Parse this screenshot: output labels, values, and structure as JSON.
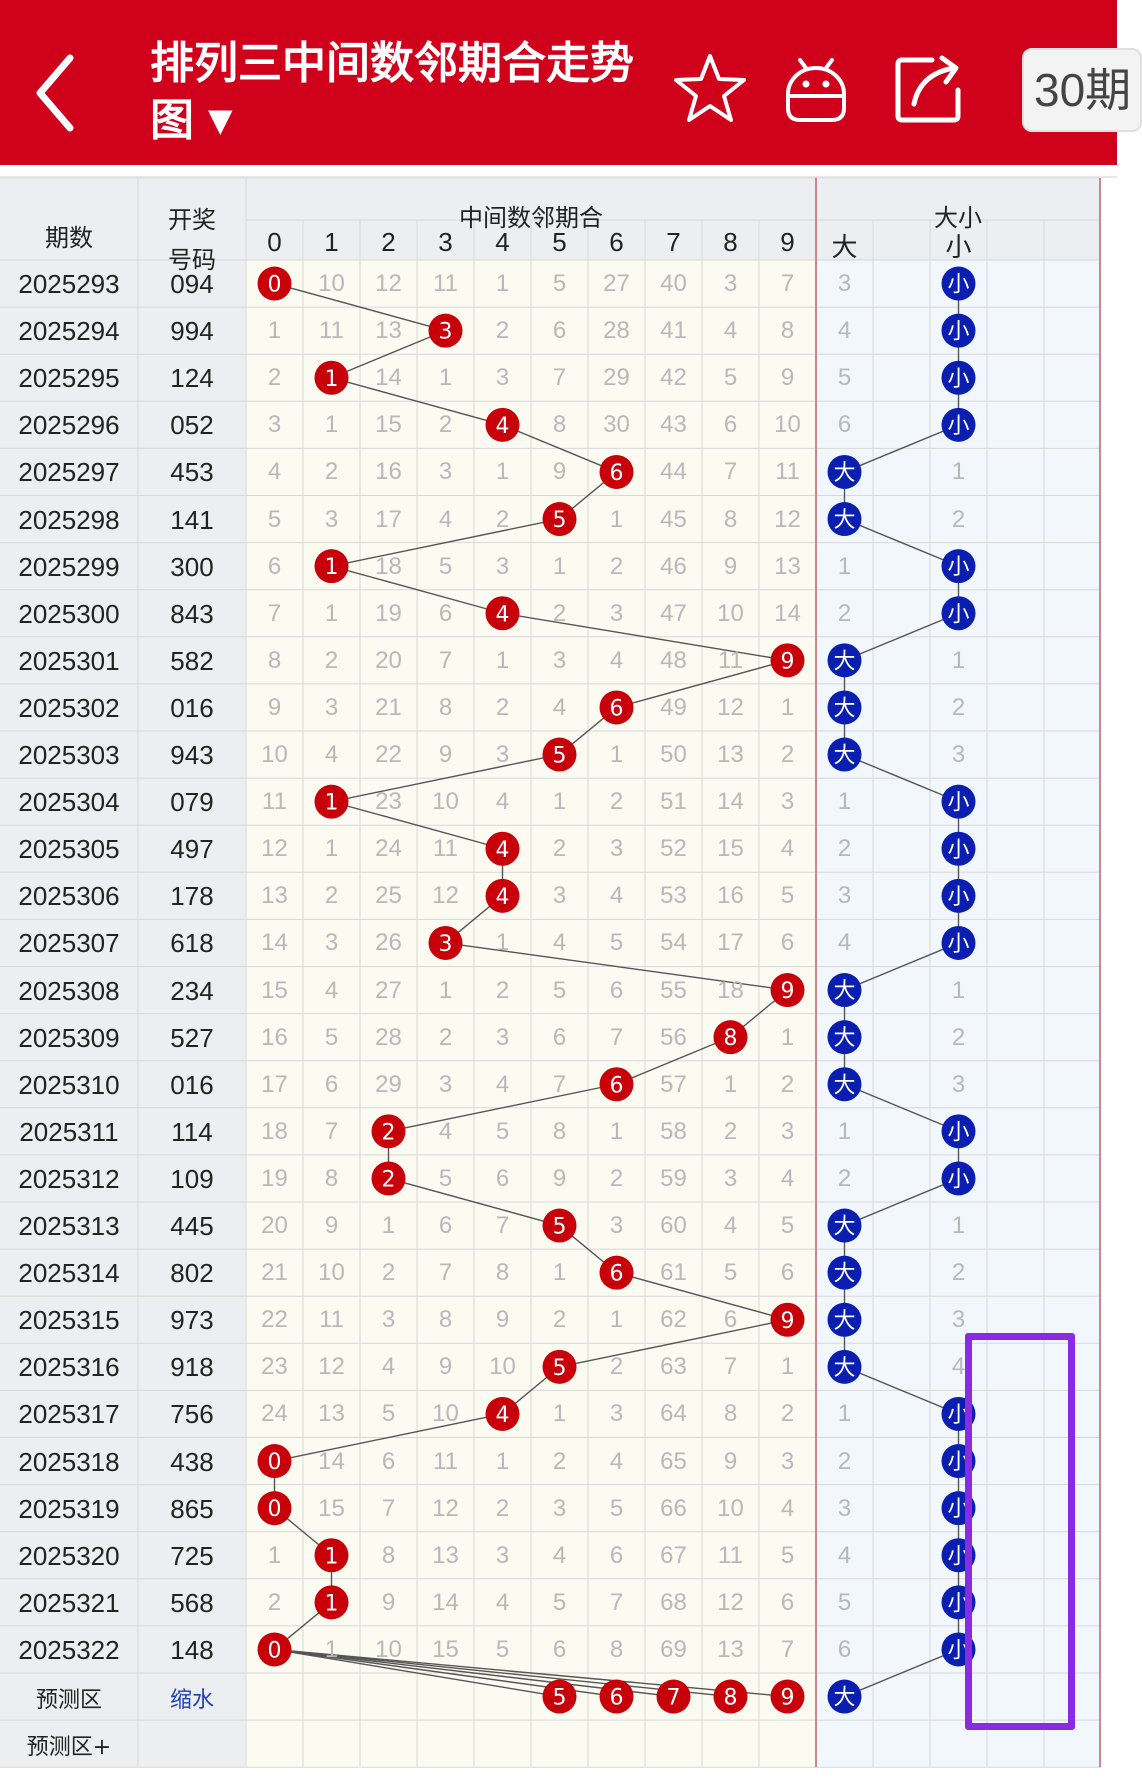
{
  "header": {
    "title": "排列三中间数邻期合走势图",
    "dropdown_arrow": "▼",
    "period_button": "30期",
    "icons": [
      "back-arrow-icon",
      "star-icon",
      "robot-icon",
      "share-icon"
    ],
    "bg_color": "#d0021b"
  },
  "table": {
    "col_period": "期数",
    "col_draw_line1": "开奖",
    "col_draw_line2": "号码",
    "group_middle": "中间数邻期合",
    "group_size": "大小",
    "digits": [
      "0",
      "1",
      "2",
      "3",
      "4",
      "5",
      "6",
      "7",
      "8",
      "9"
    ],
    "size_labels": [
      "大",
      "小"
    ],
    "ball_color_red": "#c8000a",
    "ball_color_blue": "#0a1fb0",
    "rows": [
      {
        "period": "2025293",
        "draw": "094",
        "hit": 0,
        "omit": [
          0,
          10,
          12,
          11,
          1,
          5,
          27,
          40,
          3,
          7
        ],
        "size": "小",
        "big": 3,
        "small": 0
      },
      {
        "period": "2025294",
        "draw": "994",
        "hit": 3,
        "omit": [
          1,
          11,
          13,
          0,
          2,
          6,
          28,
          41,
          4,
          8
        ],
        "size": "小",
        "big": 4,
        "small": 0
      },
      {
        "period": "2025295",
        "draw": "124",
        "hit": 1,
        "omit": [
          2,
          0,
          14,
          1,
          3,
          7,
          29,
          42,
          5,
          9
        ],
        "size": "小",
        "big": 5,
        "small": 0
      },
      {
        "period": "2025296",
        "draw": "052",
        "hit": 4,
        "omit": [
          3,
          1,
          15,
          2,
          0,
          8,
          30,
          43,
          6,
          10
        ],
        "size": "小",
        "big": 6,
        "small": 0
      },
      {
        "period": "2025297",
        "draw": "453",
        "hit": 6,
        "omit": [
          4,
          2,
          16,
          3,
          1,
          9,
          0,
          44,
          7,
          11
        ],
        "size": "大",
        "big": 0,
        "small": 1
      },
      {
        "period": "2025298",
        "draw": "141",
        "hit": 5,
        "omit": [
          5,
          3,
          17,
          4,
          2,
          0,
          1,
          45,
          8,
          12
        ],
        "size": "大",
        "big": 0,
        "small": 2
      },
      {
        "period": "2025299",
        "draw": "300",
        "hit": 1,
        "omit": [
          6,
          0,
          18,
          5,
          3,
          1,
          2,
          46,
          9,
          13
        ],
        "size": "小",
        "big": 1,
        "small": 0
      },
      {
        "period": "2025300",
        "draw": "843",
        "hit": 4,
        "omit": [
          7,
          1,
          19,
          6,
          0,
          2,
          3,
          47,
          10,
          14
        ],
        "size": "小",
        "big": 2,
        "small": 0
      },
      {
        "period": "2025301",
        "draw": "582",
        "hit": 9,
        "omit": [
          8,
          2,
          20,
          7,
          1,
          3,
          4,
          48,
          11,
          0
        ],
        "size": "大",
        "big": 0,
        "small": 1
      },
      {
        "period": "2025302",
        "draw": "016",
        "hit": 6,
        "omit": [
          9,
          3,
          21,
          8,
          2,
          4,
          0,
          49,
          12,
          1
        ],
        "size": "大",
        "big": 0,
        "small": 2
      },
      {
        "period": "2025303",
        "draw": "943",
        "hit": 5,
        "omit": [
          10,
          4,
          22,
          9,
          3,
          0,
          1,
          50,
          13,
          2
        ],
        "size": "大",
        "big": 0,
        "small": 3
      },
      {
        "period": "2025304",
        "draw": "079",
        "hit": 1,
        "omit": [
          11,
          0,
          23,
          10,
          4,
          1,
          2,
          51,
          14,
          3
        ],
        "size": "小",
        "big": 1,
        "small": 0
      },
      {
        "period": "2025305",
        "draw": "497",
        "hit": 4,
        "omit": [
          12,
          1,
          24,
          11,
          0,
          2,
          3,
          52,
          15,
          4
        ],
        "size": "小",
        "big": 2,
        "small": 0
      },
      {
        "period": "2025306",
        "draw": "178",
        "hit": 4,
        "omit": [
          13,
          2,
          25,
          12,
          0,
          3,
          4,
          53,
          16,
          5
        ],
        "size": "小",
        "big": 3,
        "small": 0
      },
      {
        "period": "2025307",
        "draw": "618",
        "hit": 3,
        "omit": [
          14,
          3,
          26,
          0,
          1,
          4,
          5,
          54,
          17,
          6
        ],
        "size": "小",
        "big": 4,
        "small": 0
      },
      {
        "period": "2025308",
        "draw": "234",
        "hit": 9,
        "omit": [
          15,
          4,
          27,
          1,
          2,
          5,
          6,
          55,
          18,
          0
        ],
        "size": "大",
        "big": 0,
        "small": 1
      },
      {
        "period": "2025309",
        "draw": "527",
        "hit": 8,
        "omit": [
          16,
          5,
          28,
          2,
          3,
          6,
          7,
          56,
          0,
          1
        ],
        "size": "大",
        "big": 0,
        "small": 2
      },
      {
        "period": "2025310",
        "draw": "016",
        "hit": 6,
        "omit": [
          17,
          6,
          29,
          3,
          4,
          7,
          0,
          57,
          1,
          2
        ],
        "size": "大",
        "big": 0,
        "small": 3
      },
      {
        "period": "2025311",
        "draw": "114",
        "hit": 2,
        "omit": [
          18,
          7,
          0,
          4,
          5,
          8,
          1,
          58,
          2,
          3
        ],
        "size": "小",
        "big": 1,
        "small": 0
      },
      {
        "period": "2025312",
        "draw": "109",
        "hit": 2,
        "omit": [
          19,
          8,
          0,
          5,
          6,
          9,
          2,
          59,
          3,
          4
        ],
        "size": "小",
        "big": 2,
        "small": 0
      },
      {
        "period": "2025313",
        "draw": "445",
        "hit": 5,
        "omit": [
          20,
          9,
          1,
          6,
          7,
          0,
          3,
          60,
          4,
          5
        ],
        "size": "大",
        "big": 0,
        "small": 1
      },
      {
        "period": "2025314",
        "draw": "802",
        "hit": 6,
        "omit": [
          21,
          10,
          2,
          7,
          8,
          1,
          0,
          61,
          5,
          6
        ],
        "size": "大",
        "big": 0,
        "small": 2
      },
      {
        "period": "2025315",
        "draw": "973",
        "hit": 9,
        "omit": [
          22,
          11,
          3,
          8,
          9,
          2,
          1,
          62,
          6,
          0
        ],
        "size": "大",
        "big": 0,
        "small": 3
      },
      {
        "period": "2025316",
        "draw": "918",
        "hit": 5,
        "omit": [
          23,
          12,
          4,
          9,
          10,
          0,
          2,
          63,
          7,
          1
        ],
        "size": "大",
        "big": 0,
        "small": 4
      },
      {
        "period": "2025317",
        "draw": "756",
        "hit": 4,
        "omit": [
          24,
          13,
          5,
          10,
          0,
          1,
          3,
          64,
          8,
          2
        ],
        "size": "小",
        "big": 1,
        "small": 0
      },
      {
        "period": "2025318",
        "draw": "438",
        "hit": 0,
        "omit": [
          0,
          14,
          6,
          11,
          1,
          2,
          4,
          65,
          9,
          3
        ],
        "size": "小",
        "big": 2,
        "small": 0
      },
      {
        "period": "2025319",
        "draw": "865",
        "hit": 0,
        "omit": [
          0,
          15,
          7,
          12,
          2,
          3,
          5,
          66,
          10,
          4
        ],
        "size": "小",
        "big": 3,
        "small": 0
      },
      {
        "period": "2025320",
        "draw": "725",
        "hit": 1,
        "omit": [
          1,
          0,
          8,
          13,
          3,
          4,
          6,
          67,
          11,
          5
        ],
        "size": "小",
        "big": 4,
        "small": 0
      },
      {
        "period": "2025321",
        "draw": "568",
        "hit": 1,
        "omit": [
          2,
          0,
          9,
          14,
          4,
          5,
          7,
          68,
          12,
          6
        ],
        "size": "小",
        "big": 5,
        "small": 0
      },
      {
        "period": "2025322",
        "draw": "148",
        "hit": 0,
        "omit": [
          0,
          1,
          10,
          15,
          5,
          6,
          8,
          69,
          13,
          7
        ],
        "size": "小",
        "big": 6,
        "small": 0
      }
    ],
    "prediction": {
      "label": "预测区",
      "link": "缩水",
      "digits": [
        "5",
        "6",
        "7",
        "8",
        "9"
      ],
      "size": "大"
    },
    "prediction_plus": "预测区+"
  }
}
